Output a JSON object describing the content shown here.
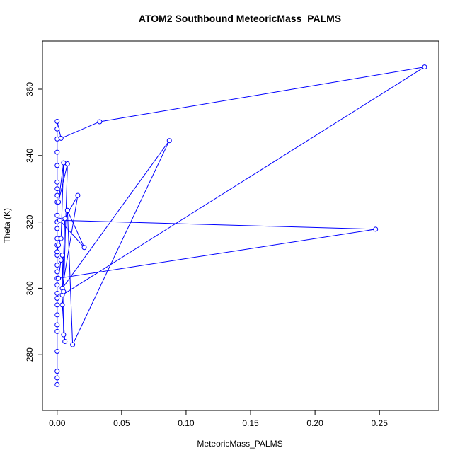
{
  "chart_data": {
    "type": "scatter",
    "title": "ATOM2 Southbound MeteoricMass_PALMS",
    "x_label": "MeteoricMass_PALMS",
    "y_label": "Theta (K)",
    "color": "#0000ff",
    "x": [
      0,
      0,
      0,
      0,
      0,
      0,
      0,
      0,
      0,
      0,
      0,
      0,
      0,
      0,
      0,
      0,
      0,
      0,
      0,
      0,
      0,
      0,
      0,
      0,
      0,
      0,
      0,
      0,
      0,
      0,
      0.003,
      0.033,
      0.285,
      0.004,
      0.006,
      0.016,
      0.004,
      0.087,
      0.012,
      0.008,
      0.021,
      0.002,
      0.247,
      0.001,
      0.003,
      0.004,
      0.005,
      0.006,
      0.004,
      0.005,
      0.008,
      0.001,
      0.005,
      0.003,
      0.001,
      0
    ],
    "values": [
      271,
      273,
      275,
      281,
      287,
      289,
      292,
      295,
      297,
      298.5,
      301,
      303,
      305,
      307,
      310,
      311,
      313,
      315,
      318,
      320,
      322,
      326,
      328,
      330,
      332,
      337,
      341,
      345,
      348,
      350.3,
      345.2,
      350.2,
      366.7,
      298,
      321,
      328,
      300,
      344.5,
      283,
      323.5,
      312.3,
      320.5,
      317.8,
      303,
      308.5,
      310,
      286,
      284,
      295,
      299,
      337.5,
      326,
      337.8,
      315,
      313,
      311
    ],
    "xlim": [
      -0.0114,
      0.296
    ],
    "ylim": [
      263.2,
      374.5
    ],
    "xticks": [
      {
        "value": 0,
        "label": "0.00"
      },
      0.05,
      {
        "value": 0.1,
        "label": "0.10"
      },
      0.15,
      {
        "value": 0.2,
        "label": "0.20"
      },
      0.25
    ],
    "yticks": [
      280,
      300,
      320,
      340,
      360
    ]
  }
}
